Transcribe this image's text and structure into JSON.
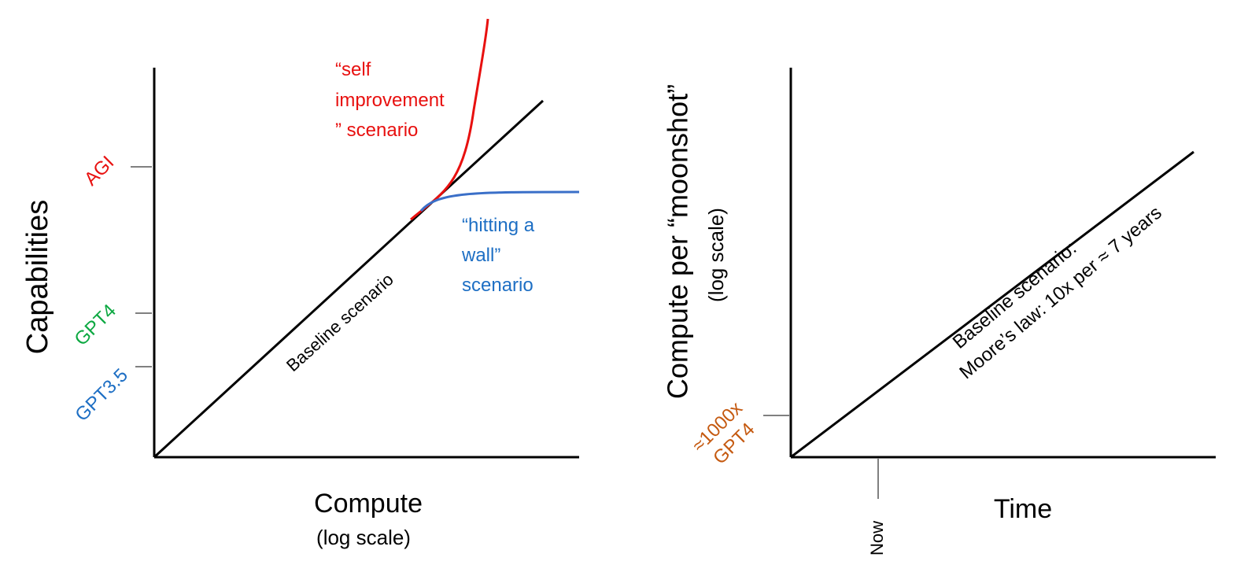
{
  "colors": {
    "axis": "#000000",
    "agi": "#e8100f",
    "gpt4": "#0ca841",
    "gpt35": "#1e6fc4",
    "self_improvement": "#e8100f",
    "hitting_wall": "#3a6fc8",
    "moonshot_tick": "#c55a11"
  },
  "left_chart": {
    "y_axis_label": "Capabilities",
    "x_axis_label": "Compute",
    "x_axis_sublabel": "(log scale)",
    "ticks": {
      "agi": "AGI",
      "gpt4": "GPT4",
      "gpt35": "GPT3.5"
    },
    "baseline_label": "Baseline scenario",
    "self_improvement_label": [
      "“self",
      "improvement",
      "” scenario"
    ],
    "hitting_wall_label": [
      "“hitting a",
      "wall”",
      "scenario"
    ]
  },
  "right_chart": {
    "y_axis_label": "Compute per “moonshot”",
    "y_axis_sublabel": "(log scale)",
    "x_axis_label": "Time",
    "now_label": "Now",
    "y_tick_label": [
      "≈1000x",
      "GPT4"
    ],
    "baseline_label": [
      "Baseline scenario:",
      "Moore’s law:  10x per ≈ 7 years"
    ]
  }
}
